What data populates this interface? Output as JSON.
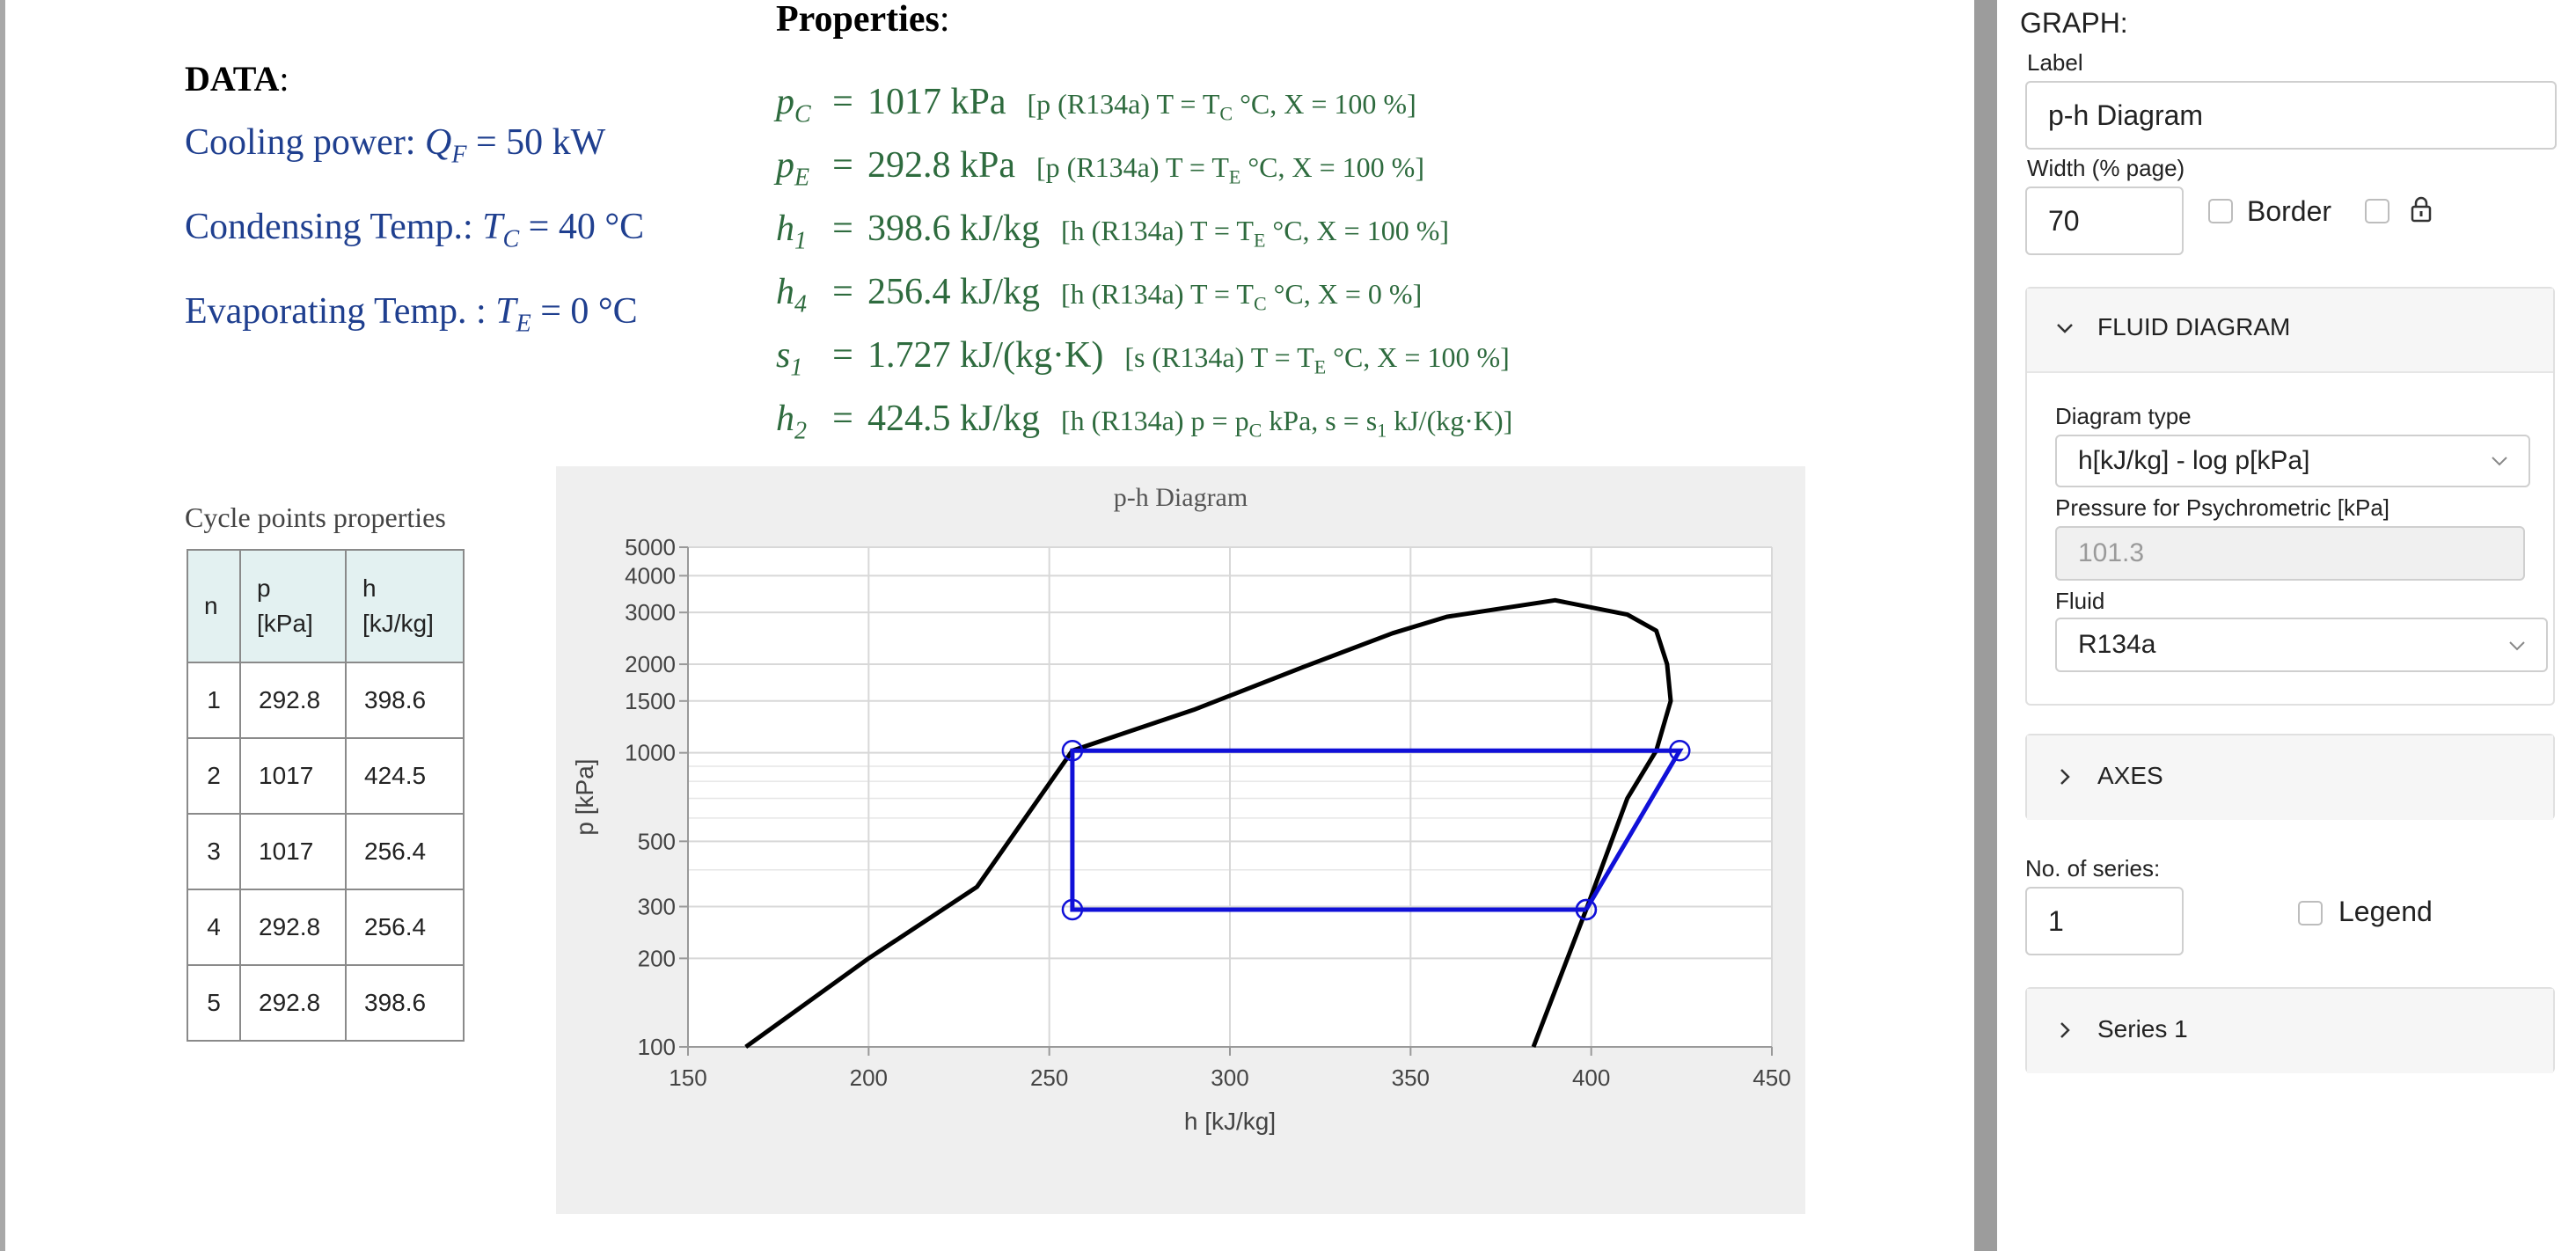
{
  "data": {
    "heading": "DATA",
    "cooling_label": "Cooling power: ",
    "cooling_sym": "Q",
    "cooling_sub": "F",
    "cooling_value": " = 50 kW",
    "cond_label": "Condensing Temp.: ",
    "cond_sym": "T",
    "cond_sub": "C",
    "cond_value": " = 40 °C",
    "evap_label": "Evaporating Temp. : ",
    "evap_sym": "T",
    "evap_sub": "E",
    "evap_value": " = 0 °C"
  },
  "properties": {
    "title": "Properties",
    "rows": [
      {
        "sym": "p",
        "sub": "C",
        "value": "1017 kPa",
        "note_a": "[p (R134a) T = T",
        "note_sub": "C",
        "note_b": " °C, X = 100 %]"
      },
      {
        "sym": "p",
        "sub": "E",
        "value": "292.8 kPa",
        "note_a": "[p (R134a) T = T",
        "note_sub": "E",
        "note_b": " °C, X = 100 %]"
      },
      {
        "sym": "h",
        "sub": "1",
        "value": "398.6 kJ/kg",
        "note_a": "[h (R134a) T = T",
        "note_sub": "E",
        "note_b": " °C, X = 100 %]"
      },
      {
        "sym": "h",
        "sub": "4",
        "value": "256.4 kJ/kg",
        "note_a": "[h (R134a) T = T",
        "note_sub": "C",
        "note_b": " °C, X = 0 %]"
      },
      {
        "sym": "s",
        "sub": "1",
        "value": "1.727 kJ/(kg·K)",
        "note_a": "[s (R134a) T = T",
        "note_sub": "E",
        "note_b": " °C, X = 100 %]"
      },
      {
        "sym": "h",
        "sub": "2",
        "value": "424.5 kJ/kg",
        "note_a": "[h (R134a) p = p",
        "note_sub": "C",
        "note_b": " kPa, s = s",
        "note_sub2": "1",
        "note_c": " kJ/(kg·K)]"
      }
    ]
  },
  "table": {
    "caption": "Cycle points properties",
    "headers": [
      [
        "n"
      ],
      [
        "p",
        "[kPa]"
      ],
      [
        "h",
        "[kJ/kg]"
      ]
    ],
    "rows": [
      [
        "1",
        "292.8",
        "398.6"
      ],
      [
        "2",
        "1017",
        "424.5"
      ],
      [
        "3",
        "1017",
        "256.4"
      ],
      [
        "4",
        "292.8",
        "256.4"
      ],
      [
        "5",
        "292.8",
        "398.6"
      ]
    ]
  },
  "chart_data": {
    "type": "line",
    "title": "p-h Diagram",
    "xlabel": "h [kJ/kg]",
    "ylabel": "p [kPa]",
    "xlim": [
      150,
      450
    ],
    "ylim": [
      100,
      5000
    ],
    "yscale": "log",
    "grid": true,
    "x_ticks": [
      150,
      200,
      250,
      300,
      350,
      400,
      450
    ],
    "y_ticks": [
      100,
      200,
      300,
      500,
      1000,
      1500,
      2000,
      3000,
      4000,
      5000
    ],
    "saturation_dome": {
      "color": "#000000",
      "h": [
        166,
        200,
        230,
        256.4,
        290,
        320,
        345,
        360,
        390,
        410,
        418,
        421,
        422,
        418,
        410,
        398.6,
        384
      ],
      "p": [
        100,
        200,
        350,
        1017,
        1400,
        1950,
        2550,
        2900,
        3300,
        2950,
        2600,
        2000,
        1500,
        1017,
        700,
        292.8,
        100
      ]
    },
    "series": [
      {
        "color": "#1010d8",
        "h": [
          398.6,
          424.5,
          256.4,
          256.4,
          398.6
        ],
        "p": [
          292.8,
          1017,
          1017,
          292.8,
          292.8
        ]
      }
    ]
  },
  "sidebar": {
    "graph_heading": "GRAPH:",
    "label_caption": "Label",
    "label_value": "p-h  Diagram",
    "width_caption": "Width (% page)",
    "width_value": "70",
    "border_label": "Border",
    "fluid_panel_title": "FLUID DIAGRAM",
    "diagram_type_caption": "Diagram type",
    "diagram_type_value": "h[kJ/kg] - log p[kPa]",
    "pressure_caption": "Pressure for Psychrometric [kPa]",
    "pressure_value": "101.3",
    "fluid_caption": "Fluid",
    "fluid_value": "R134a",
    "axes_panel_title": "AXES",
    "series_count_caption": "No. of series:",
    "series_count_value": "1",
    "legend_label": "Legend",
    "series_panel_title": "Series 1"
  }
}
